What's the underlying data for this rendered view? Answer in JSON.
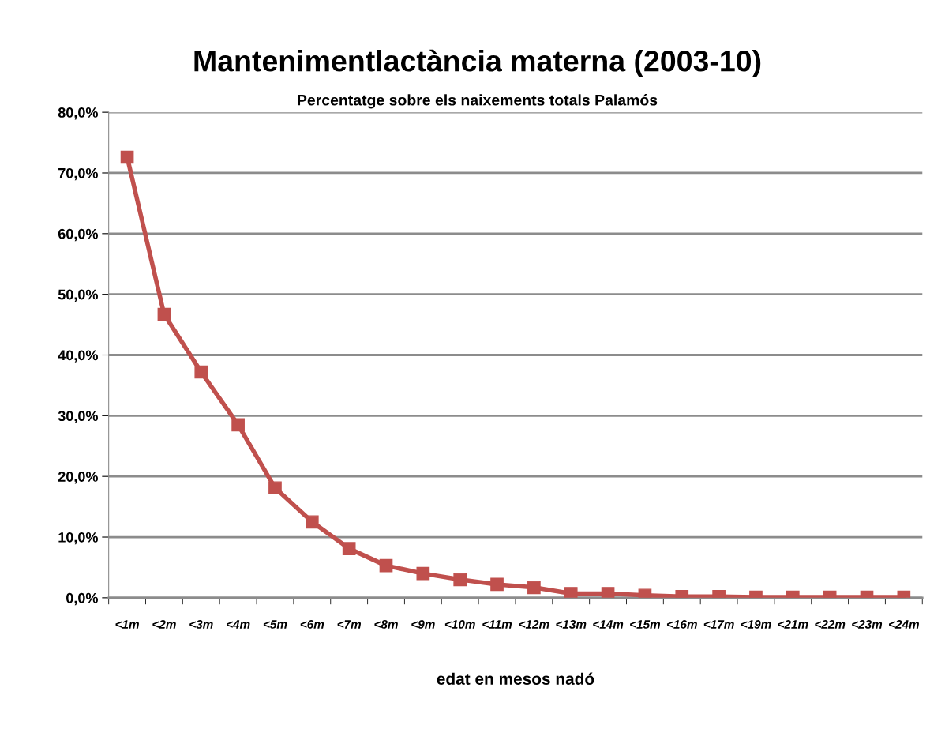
{
  "chart_data": {
    "type": "line",
    "title": "Mantenimentlactància materna (2003-10)",
    "subtitle": "Percentatge sobre els naixements totals Palamós",
    "xlabel": "edat en mesos nadó",
    "categories": [
      "<1m",
      "<2m",
      "<3m",
      "<4m",
      "<5m",
      "<6m",
      "<7m",
      "<8m",
      "<9m",
      "<10m",
      "<11m",
      "<12m",
      "<13m",
      "<14m",
      "<15m",
      "<16m",
      "<17m",
      "<19m",
      "<21m",
      "<22m",
      "<23m",
      "<24m"
    ],
    "series": [
      {
        "color": "#c0504d",
        "values": [
          72.6,
          46.7,
          37.2,
          28.5,
          18.1,
          12.5,
          8.1,
          5.3,
          4.0,
          3.0,
          2.2,
          1.7,
          0.7,
          0.7,
          0.4,
          0.2,
          0.2,
          0.1,
          0.1,
          0.1,
          0.1,
          0.1
        ]
      }
    ],
    "ylim": [
      0,
      80
    ],
    "yticks": [
      {
        "value": 0,
        "label": "0,0%"
      },
      {
        "value": 10,
        "label": "10,0%"
      },
      {
        "value": 20,
        "label": "20,0%"
      },
      {
        "value": 30,
        "label": "30,0%"
      },
      {
        "value": 40,
        "label": "40,0%"
      },
      {
        "value": 50,
        "label": "50,0%"
      },
      {
        "value": 60,
        "label": "60,0%"
      },
      {
        "value": 70,
        "label": "70,0%"
      },
      {
        "value": 80,
        "label": "80,0%"
      }
    ],
    "grid": "y",
    "marker": "square",
    "line_style": "solid"
  }
}
